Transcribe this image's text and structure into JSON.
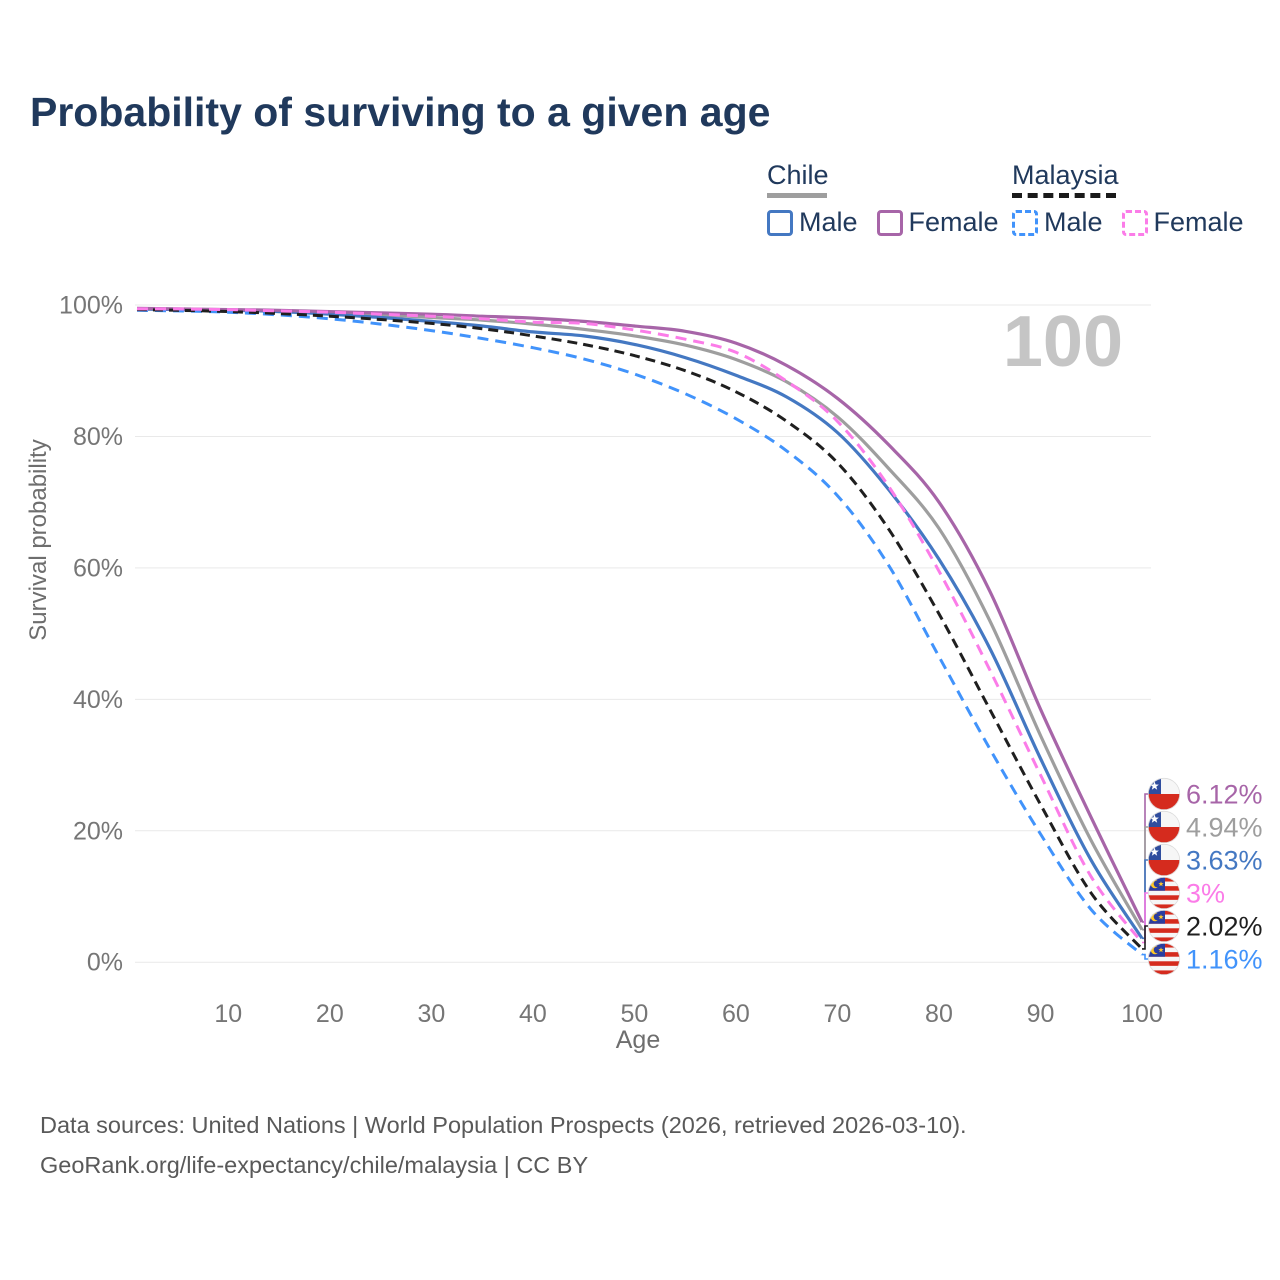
{
  "header": {
    "title": "Probability of surviving to a given age"
  },
  "legend": {
    "groups": [
      {
        "label": "Chile",
        "line_style": "solid",
        "line_color": "#9e9e9e",
        "items": [
          {
            "label": "Male",
            "color": "#4478c2",
            "style": "solid"
          },
          {
            "label": "Female",
            "color": "#a765a8",
            "style": "solid"
          }
        ]
      },
      {
        "label": "Malaysia",
        "line_style": "dashed",
        "line_color": "#1a1a1a",
        "items": [
          {
            "label": "Male",
            "color": "#4193fb",
            "style": "dashed"
          },
          {
            "label": "Female",
            "color": "#fb7ce8",
            "style": "dashed"
          }
        ]
      }
    ]
  },
  "chart_data": {
    "type": "line",
    "title": "Probability of surviving to a given age",
    "xlabel": "Age",
    "ylabel": "Survival probability",
    "xlim": [
      0,
      100
    ],
    "ylim": [
      0,
      100
    ],
    "grid": true,
    "legend_position": "top-right",
    "watermark": "100",
    "xticks": [
      10,
      20,
      30,
      40,
      50,
      60,
      70,
      80,
      90,
      100
    ],
    "yticks_percent": [
      0,
      20,
      40,
      60,
      80,
      100
    ],
    "x": [
      1,
      5,
      10,
      15,
      20,
      25,
      30,
      35,
      40,
      45,
      50,
      55,
      60,
      65,
      70,
      75,
      80,
      85,
      90,
      95,
      100
    ],
    "series": [
      {
        "name": "Chile Both sexes",
        "country": "chile",
        "sex": "both",
        "color": "#9e9e9e",
        "dash": "solid",
        "end_label": "4.94%",
        "values": [
          99.4,
          99.3,
          99.2,
          99.1,
          98.8,
          98.5,
          98.1,
          97.7,
          97.1,
          96.3,
          95.3,
          93.9,
          91.7,
          88.3,
          83.0,
          75.2,
          66.0,
          52.0,
          34.5,
          18.5,
          4.94
        ]
      },
      {
        "name": "Chile Male",
        "country": "chile",
        "sex": "male",
        "color": "#4478c2",
        "dash": "solid",
        "end_label": "3.63%",
        "values": [
          99.4,
          99.3,
          99.2,
          99.0,
          98.6,
          98.1,
          97.5,
          96.8,
          95.9,
          95.3,
          94.0,
          92.0,
          89.3,
          86.0,
          80.6,
          72.0,
          61.3,
          47.8,
          31.0,
          15.5,
          3.63
        ]
      },
      {
        "name": "Chile Female",
        "country": "chile",
        "sex": "female",
        "color": "#a765a8",
        "dash": "solid",
        "end_label": "6.12%",
        "values": [
          99.5,
          99.4,
          99.3,
          99.2,
          99.0,
          98.8,
          98.6,
          98.3,
          98.0,
          97.5,
          96.8,
          96.0,
          94.2,
          90.8,
          85.8,
          78.8,
          70.0,
          56.5,
          38.5,
          22.0,
          6.12
        ]
      },
      {
        "name": "Malaysia Male",
        "country": "malaysia",
        "sex": "male",
        "color": "#4193fb",
        "dash": "dashed",
        "end_label": "1.16%",
        "values": [
          99.2,
          99.1,
          98.9,
          98.5,
          97.9,
          97.1,
          96.1,
          94.9,
          93.5,
          91.8,
          89.5,
          86.5,
          82.7,
          77.8,
          71.0,
          60.5,
          46.5,
          32.5,
          19.5,
          8.0,
          1.16
        ]
      },
      {
        "name": "Malaysia Both sexes",
        "country": "malaysia",
        "sex": "both",
        "color": "#1f1f1f",
        "dash": "dashed",
        "end_label": "2.02%",
        "values": [
          99.3,
          99.2,
          99.0,
          98.7,
          98.3,
          97.8,
          97.2,
          96.4,
          95.3,
          94.0,
          92.3,
          90.0,
          86.8,
          82.3,
          76.0,
          66.0,
          53.0,
          38.5,
          24.0,
          10.5,
          2.02
        ]
      },
      {
        "name": "Malaysia Female",
        "country": "malaysia",
        "sex": "female",
        "color": "#fb7ce8",
        "dash": "dashed",
        "end_label": "3%",
        "values": [
          99.4,
          99.4,
          99.3,
          99.1,
          98.9,
          98.6,
          98.3,
          97.9,
          97.4,
          97.2,
          96.2,
          94.8,
          92.8,
          88.4,
          82.3,
          72.5,
          59.5,
          44.5,
          28.5,
          13.0,
          3.0
        ]
      }
    ],
    "flag_colors": {
      "chile": {
        "canton": "#2f4d9e",
        "star": "#ffffff",
        "field": "#f6f6f6",
        "red": "#d52b1e"
      },
      "malaysia": {
        "canton": "#2b3d9e",
        "crescent": "#ffc726",
        "white": "#f6f6f6",
        "red": "#d52b1e"
      }
    },
    "axis_text_color": "#767676",
    "grid_color": "#e9e9e9",
    "watermark_color": "#c5c5c5"
  },
  "footer": {
    "line1": "Data sources: United Nations | World Population Prospects (2026, retrieved 2026-03-10).",
    "line2": "GeoRank.org/life-expectancy/chile/malaysia | CC BY"
  }
}
